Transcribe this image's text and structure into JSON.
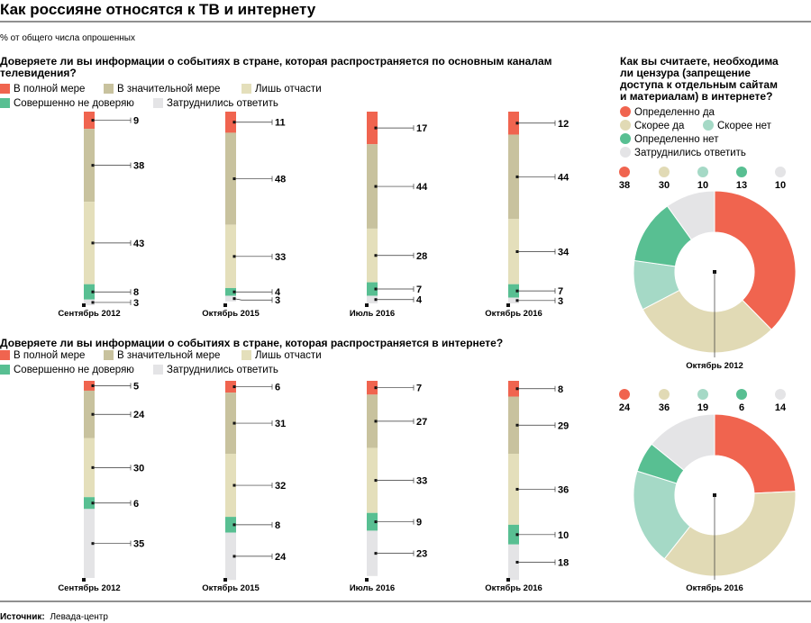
{
  "title": "Как россияне относятся к ТВ и интернету",
  "subtitle": "% от общего числа опрошенных",
  "source_label": "Источник:",
  "source": "Левада-центр",
  "colors": {
    "full": "#f0644f",
    "significant": "#c8c29e",
    "partly": "#e4dfbb",
    "distrust": "#58bf92",
    "undecided": "#e4e4e6",
    "def_yes": "#f0644f",
    "rather_yes": "#e1dab5",
    "rather_no": "#a5d9c6",
    "def_no": "#58bf92"
  },
  "trust_legend": [
    "В полной мере",
    "В значительной мере",
    "Лишь отчасти",
    "Совершенно не доверяю",
    "Затруднились ответить"
  ],
  "censorship_legend": [
    "Определенно да",
    "Скорее да",
    "Скорее нет",
    "Определенно нет",
    "Затруднились ответить"
  ],
  "chart_data": [
    {
      "type": "bar",
      "title": "Доверяете ли вы информации о событиях в стране, которая распространяется  по основным каналам телевидения?",
      "title_lines": [
        "Доверяете ли вы информации о событиях в стране, которая распространяется  по основным каналам",
        "телевидения?"
      ],
      "categories": [
        "Сентябрь 2012",
        "Октябрь 2015",
        "Июль 2016",
        "Октябрь 2016"
      ],
      "series": [
        {
          "name": "В полной мере",
          "values": [
            9,
            11,
            17,
            12
          ]
        },
        {
          "name": "В значительной мере",
          "values": [
            38,
            48,
            44,
            44
          ]
        },
        {
          "name": "Лишь отчасти",
          "values": [
            43,
            33,
            28,
            34
          ]
        },
        {
          "name": "Совершенно не доверяю",
          "values": [
            8,
            4,
            7,
            7
          ]
        },
        {
          "name": "Затруднились ответить",
          "values": [
            3,
            3,
            4,
            3
          ]
        }
      ]
    },
    {
      "type": "bar",
      "title": "Доверяете ли вы информации о событиях в стране, которая распространяется в интернете?",
      "title_lines": [
        "Доверяете ли вы информации о событиях в стране, которая распространяется в интернете?"
      ],
      "categories": [
        "Сентябрь 2012",
        "Октябрь 2015",
        "Июль 2016",
        "Октябрь 2016"
      ],
      "series": [
        {
          "name": "В полной мере",
          "values": [
            5,
            6,
            7,
            8
          ]
        },
        {
          "name": "В значительной мере",
          "values": [
            24,
            31,
            27,
            29
          ]
        },
        {
          "name": "Лишь отчасти",
          "values": [
            30,
            32,
            33,
            36
          ]
        },
        {
          "name": "Совершенно не доверяю",
          "values": [
            6,
            8,
            9,
            10
          ]
        },
        {
          "name": "Затруднились ответить",
          "values": [
            35,
            24,
            23,
            18
          ]
        }
      ]
    },
    {
      "type": "pie",
      "title": "Как вы считаете, необходима ли цензура (запрещение доступа к отдельным сайтам и материалам) в интернете?",
      "title_lines": [
        "Как вы считаете, необходима",
        "ли цензура (запрещение",
        "доступа к отдельным сайтам",
        "и материалам) в интернете?"
      ],
      "period": "Октябрь 2012",
      "categories": [
        "Определенно да",
        "Скорее да",
        "Скорее нет",
        "Определенно нет",
        "Затруднились ответить"
      ],
      "values": [
        38,
        30,
        10,
        13,
        10
      ]
    },
    {
      "type": "pie",
      "period": "Октябрь 2016",
      "categories": [
        "Определенно да",
        "Скорее да",
        "Скорее нет",
        "Определенно нет",
        "Затруднились ответить"
      ],
      "values": [
        24,
        36,
        19,
        6,
        14
      ]
    }
  ]
}
